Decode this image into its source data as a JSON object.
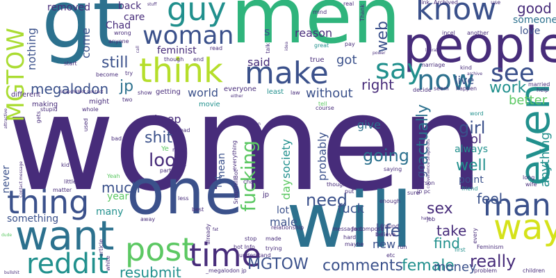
{
  "palette": {
    "background": "#ffffff",
    "dark_purple": "#472c7a",
    "indigo": "#3b518b",
    "blue": "#2c718e",
    "teal": "#21908d",
    "green": "#27ad81",
    "lime": "#5cc863",
    "yellow_green": "#aadc32",
    "yellow": "#d5e21a"
  },
  "words": {
    "women": "women",
    "men": "men",
    "gt": "gt",
    "will": "will",
    "one": "one",
    "people": "people",
    "think": "think",
    "make": "make",
    "woman": "woman",
    "guy": "guy",
    "know": "know",
    "even": "even",
    "way": "way",
    "man": "man",
    "want": "want",
    "thing": "thing",
    "time": "time",
    "post": "post",
    "reddit": "reddit",
    "MGTOW_vertical": "MGTOW",
    "MGTOW": "MGTOW",
    "say": "say",
    "now": "now",
    "see": "see",
    "comments": "comments",
    "female": "female",
    "really": "really",
    "resubmit": "resubmit",
    "fucking": "fucking",
    "look": "look",
    "shit": "shit",
    "much": "much",
    "megalodon": "megalodon",
    "jp": "jp",
    "still": "still",
    "need": "need",
    "life": "life",
    "going": "going",
    "girl": "girl",
    "well": "well",
    "lol": "lol",
    "actually": "actually",
    "feel": "feel",
    "find": "find",
    "take": "take",
    "sex": "sex",
    "money": "money",
    "web": "web",
    "work": "work",
    "better": "better",
    "good": "good",
    "someone": "someone",
    "love": "love",
    "anything": "anything",
    "right": "right",
    "live": "live",
    "without": "without",
    "got": "got",
    "reason": "reason",
    "feminist": "feminist",
    "Chad": "Chad",
    "come": "come",
    "nothing": "nothing",
    "removed": "removed",
    "back": "back",
    "care": "care",
    "world": "world",
    "said": "said",
    "s": "s",
    "keep": "keep",
    "give": "give",
    "society": "society",
    "day": "day",
    "probably": "probably",
    "go": "go",
    "always": "always",
    "point": "point",
    "let": "let",
    "mean": "mean",
    "year": "year",
    "many": "many",
    "something": "something",
    "never": "never",
    "lot": "lot",
    "male": "male",
    "new": "new",
    "fuck": "fuck",
    "everyone": "everyone",
    "least": "least",
    "movie": "movie",
    "getting": "getting",
    "might": "might",
    "making": "making",
    "different": "different",
    "start": "start",
    "anyone": "anyone",
    "wrong": "wrong",
    "become": "become",
    "read": "read",
    "end": "end",
    "though": "though",
    "try": "try",
    "show": "show",
    "talk": "talk",
    "mind": "mind",
    "real": "real",
    "true": "true",
    "pay": "pay",
    "great": "great",
    "Thank": "Thank",
    "link": "link",
    "Archived": "Archived",
    "use": "use",
    "incel": "incel",
    "another": "another",
    "marriage": "marriage",
    "kind": "kind",
    "happen": "happen",
    "seem": "seem",
    "decide": "decide",
    "married": "married",
    "help": "help",
    "course": "course",
    "law": "law",
    "word": "word",
    "person": "person",
    "jp_pc": "jp pc",
    "enough": "enough",
    "sure": "sure",
    "job": "job",
    "friend": "friend",
    "long": "long",
    "wife": "wife",
    "believe": "believe",
    "around": "around",
    "fact": "fact",
    "hard": "hard",
    "maybe": "maybe",
    "run": "run",
    "etc": "etc",
    "first": "first",
    "every": "every",
    "Feminism": "Feminism",
    "problem": "problem",
    "children": "children",
    "put": "put",
    "thought": "thought",
    "saying": "saying",
    "relationship": "relationship",
    "message_compose": "message compose",
    "made": "made",
    "stop": "stop",
    "bot_info": "bot Info",
    "trying": "trying",
    "understand": "understand",
    "megalodon_jp": "_megalodon jp",
    "already": "already",
    "best": "best",
    "less": "less",
    "change": "change",
    "must": "must",
    "part": "part",
    "instead": "instead",
    "everything": "everything",
    "SnapshillBot": "SnapshillBot",
    "Yeah": "Yeah",
    "kid": "kid",
    "little": "little",
    "matter": "matter",
    "article": "article",
    "white": "white",
    "bullshit": "bullshit",
    "dude": "dude",
    "away": "away",
    "bad": "bad",
    "used": "used",
    "gets": "gets",
    "stupid": "stupid",
    "whole": "whole",
    "two": "two",
    "Contact_message": "Contact message",
    "Snapshill_contact": "SnapshillBot Contact",
    "either": "either",
    "human": "human",
    "tell": "tell",
    "hate": "hate",
    "literally": "literally",
    "power": "power",
    "archive": "archive",
    "convenience": "convenience Snapshots",
    "idea": "idea",
    "call": "call",
    "stuff": "stuff",
    "attractive": "attractive",
    "ye": "Ye",
    "r_jp": "jp",
    "fat": "fat"
  }
}
